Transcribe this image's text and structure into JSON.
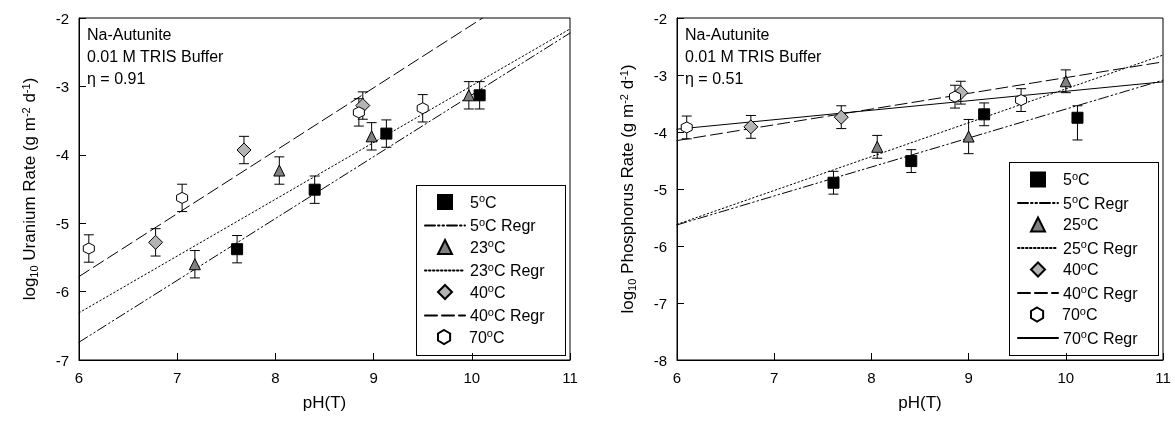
{
  "chart_data": [
    {
      "type": "scatter",
      "xlabel": "pH(T)",
      "ylabel": "log$_{10}$ Uranium Rate (g m$^{-2}$ d$^{-1}$)",
      "xlim": [
        6,
        11
      ],
      "ylim": [
        -7,
        -2
      ],
      "xticks": [
        6,
        7,
        8,
        9,
        10,
        11
      ],
      "yticks": [
        -7,
        -6,
        -5,
        -4,
        -3,
        -2
      ],
      "legend": "bottom right",
      "grid": false,
      "annotations": [
        "Na-Autunite",
        "0.01 M TRIS Buffer",
        "η = 0.91"
      ],
      "series": [
        {
          "name": "5$^{o}$C",
          "marker": "square",
          "color": "#000000",
          "x": [
            7.61,
            8.4,
            9.13,
            10.08
          ],
          "values": [
            -5.38,
            -4.51,
            -3.69,
            -3.13
          ],
          "errors": [
            0.2,
            0.2,
            0.2,
            0.2
          ]
        },
        {
          "name": "5$^{o}$C Regr",
          "type": "line",
          "line_style": "dashdot",
          "color": "#000000",
          "x": [
            6,
            11
          ],
          "values": [
            -6.74,
            -2.22
          ]
        },
        {
          "name": "23$^{o}$C",
          "marker": "triangle",
          "color": "#808080",
          "x": [
            7.18,
            8.04,
            8.98,
            9.97
          ],
          "values": [
            -5.6,
            -4.23,
            -3.73,
            -3.13
          ],
          "errors": [
            0.2,
            0.2,
            0.2,
            0.2
          ]
        },
        {
          "name": "23$^{o}$C Regr",
          "type": "line",
          "line_style": "dotted",
          "color": "#000000",
          "x": [
            6,
            11
          ],
          "values": [
            -6.31,
            -2.16
          ]
        },
        {
          "name": "40$^{o}$C",
          "marker": "diamond",
          "color": "#b4b4b4",
          "x": [
            6.78,
            7.68,
            8.89
          ],
          "values": [
            -5.28,
            -3.93,
            -3.28
          ],
          "errors": [
            0.2,
            0.2,
            0.2
          ]
        },
        {
          "name": "40$^{o}$C Regr",
          "type": "line",
          "line_style": "dashed",
          "color": "#000000",
          "x": [
            6,
            10.11
          ],
          "values": [
            -5.78,
            -2.0
          ]
        },
        {
          "name": "70$^{o}$C",
          "color": "#ffffff",
          "x": [
            6.1,
            7.05,
            8.85,
            9.5
          ],
          "values": [
            -5.37,
            -4.63,
            -3.38,
            -3.32
          ],
          "errors": [
            0.2,
            0.2,
            0.2,
            0.2
          ]
        }
      ]
    },
    {
      "type": "scatter",
      "xlabel": "pH(T)",
      "ylabel": "log$_{10}$ Phosphorus Rate (g m$^{-2}$ d$^{-1}$)",
      "xlim": [
        6,
        11
      ],
      "ylim": [
        -8,
        -2
      ],
      "xticks": [
        6,
        7,
        8,
        9,
        10,
        11
      ],
      "yticks": [
        -8,
        -7,
        -6,
        -5,
        -4,
        -3,
        -2
      ],
      "legend": "bottom right",
      "grid": false,
      "annotations": [
        "Na-Autunite",
        "0.01 M TRIS Buffer",
        "η = 0.51"
      ],
      "series": [
        {
          "name": "5$^{o}$C",
          "marker": "square",
          "color": "#000000",
          "x": [
            7.61,
            8.41,
            9.16,
            10.12
          ],
          "values": [
            -4.89,
            -4.51,
            -3.69,
            -3.75
          ],
          "errors": [
            0.2,
            0.2,
            0.2,
            [
              -4.14,
              -3.54
            ]
          ]
        },
        {
          "name": "5$^{o}$C Regr",
          "type": "line",
          "line_style": "dashdot",
          "color": "#000000",
          "x": [
            6,
            11
          ],
          "values": [
            -5.63,
            -3.09
          ]
        },
        {
          "name": "25$^{o}$C",
          "marker": "triangle",
          "color": "#808080",
          "x": [
            8.06,
            9.0,
            10.0
          ],
          "values": [
            -4.26,
            -4.08,
            -3.11
          ],
          "errors": [
            0.2,
            0.3,
            0.2
          ]
        },
        {
          "name": "25$^{o}$C Regr",
          "type": "line",
          "line_style": "dotted",
          "color": "#000000",
          "x": [
            6,
            11
          ],
          "values": [
            -5.62,
            -2.65
          ]
        },
        {
          "name": "40$^{o}$C",
          "marker": "diamond",
          "color": "#b4b4b4",
          "x": [
            6.76,
            7.69,
            8.92
          ],
          "values": [
            -3.91,
            -3.74,
            -3.31
          ],
          "errors": [
            0.2,
            0.2,
            0.2
          ]
        },
        {
          "name": "40$^{o}$C Regr",
          "type": "line",
          "line_style": "dashed",
          "color": "#000000",
          "x": [
            6,
            11
          ],
          "values": [
            -4.15,
            -2.77
          ]
        },
        {
          "name": "70$^{o}$C",
          "color": "#ffffff",
          "x": [
            6.1,
            8.86,
            9.54
          ],
          "values": [
            -3.92,
            -3.38,
            -3.44
          ],
          "errors": [
            0.2,
            0.2,
            0.2
          ]
        },
        {
          "name": "70$^{o}$C Regr",
          "type": "line",
          "line_style": "solid",
          "color": "#000000",
          "x": [
            6,
            11
          ],
          "values": [
            -3.95,
            -3.12
          ]
        }
      ]
    }
  ]
}
